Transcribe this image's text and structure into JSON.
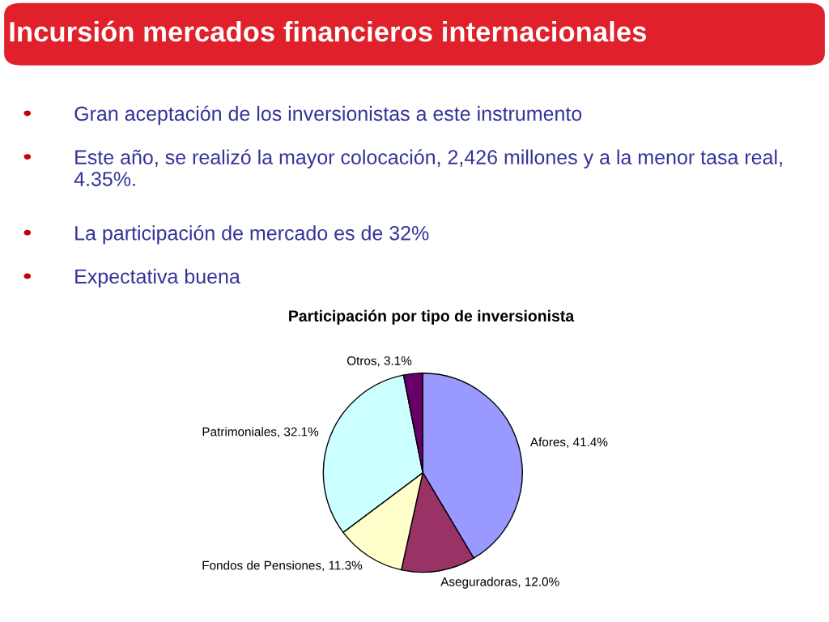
{
  "chart_data": {
    "type": "pie",
    "title": "Incursión mercados financieros internacionales",
    "subtitle": "Participación por tipo de inversionista",
    "annotations": [
      "Gran aceptación de los inversionistas a este instrumento",
      "Este año, se realizó la mayor colocación, 2,426 millones y a la menor tasa real, 4.35%.",
      "La participación de mercado es de 32%",
      "Expectativa buena"
    ],
    "categories": [
      "Afores",
      "Aseguradoras",
      "Fondos de Pensiones",
      "Patrimoniales",
      "Otros"
    ],
    "values": [
      41.4,
      12.0,
      11.3,
      32.1,
      3.1
    ],
    "value_labels": [
      "41.4%",
      "12.0%",
      "11.3%",
      "32.1%",
      "3.1%"
    ],
    "colors": [
      "#9999ff",
      "#993366",
      "#ffffcc",
      "#ccffff",
      "#660066"
    ],
    "legend": false
  }
}
